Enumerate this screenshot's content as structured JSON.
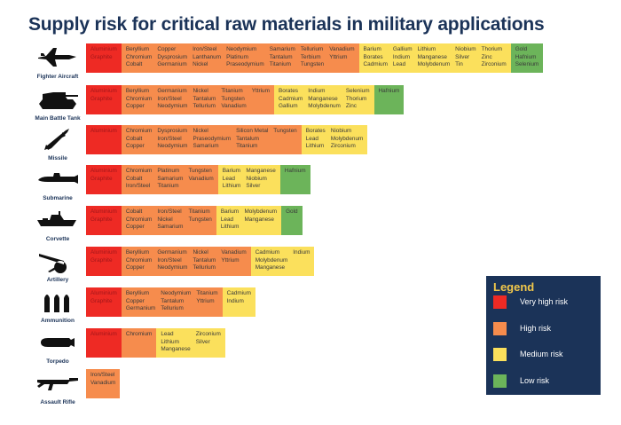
{
  "title": "Supply risk for critical raw materials in military applications",
  "legend": {
    "title": "Legend",
    "items": [
      {
        "label": "Very high risk",
        "color": "#ee2a24"
      },
      {
        "label": "High risk",
        "color": "#f68c4d"
      },
      {
        "label": "Medium risk",
        "color": "#fbe05c"
      },
      {
        "label": "Low risk",
        "color": "#6cb45a"
      }
    ]
  },
  "rows": [
    {
      "label": "Fighter Aircraft",
      "groups": [
        {
          "color": "#ee2a24",
          "columns": [
            [
              "Aluminium",
              "Graphite"
            ]
          ]
        },
        {
          "color": "#f68c4d",
          "columns": [
            [
              "Beryllium",
              "Chromium",
              "Cobalt"
            ],
            [
              "Copper",
              "Dysprosium",
              "Germanium"
            ],
            [
              "Iron/Steel",
              "Lanthanum",
              "Nickel"
            ],
            [
              "Neodymium",
              "Platinum",
              "Praseodymium"
            ],
            [
              "Samarium",
              "Tantalum",
              "Titanium"
            ],
            [
              "Tellurium",
              "Terbium",
              "Tungsten"
            ],
            [
              "Vanadium",
              "Yttrium"
            ]
          ]
        },
        {
          "color": "#fbe05c",
          "columns": [
            [
              "Barium",
              "Borates",
              "Cadmium"
            ],
            [
              "Gallium",
              "Indium",
              "Lead"
            ],
            [
              "Lithium",
              "Manganese",
              "Molybdenum"
            ],
            [
              "Niobium",
              "Silver",
              "Tin"
            ],
            [
              "Thorium",
              "Zinc",
              "Zirconium"
            ]
          ]
        },
        {
          "color": "#6cb45a",
          "columns": [
            [
              "Gold",
              "Hafnium",
              "Selenium"
            ]
          ]
        }
      ]
    },
    {
      "label": "Main Battle Tank",
      "groups": [
        {
          "color": "#ee2a24",
          "columns": [
            [
              "Aluminium",
              "Graphite"
            ]
          ]
        },
        {
          "color": "#f68c4d",
          "columns": [
            [
              "Beryllium",
              "Chromium",
              "Copper"
            ],
            [
              "Germanium",
              "Iron/Steel",
              "Neodymium"
            ],
            [
              "Nickel",
              "Tantalum",
              "Tellurium"
            ],
            [
              "Titanium",
              "Tungsten",
              "Vanadium"
            ],
            [
              "Yttrium"
            ]
          ]
        },
        {
          "color": "#fbe05c",
          "columns": [
            [
              "Borates",
              "Cadmium",
              "Gallium"
            ],
            [
              "Indium",
              "Manganese",
              "Molybdenum"
            ],
            [
              "Selenium",
              "Thorium",
              "Zinc"
            ]
          ]
        },
        {
          "color": "#6cb45a",
          "columns": [
            [
              "Hafnium"
            ]
          ]
        }
      ]
    },
    {
      "label": "Missile",
      "groups": [
        {
          "color": "#ee2a24",
          "columns": [
            [
              "Aluminium"
            ]
          ]
        },
        {
          "color": "#f68c4d",
          "columns": [
            [
              "Chromium",
              "Cobalt",
              "Copper"
            ],
            [
              "Dysprosium",
              "Iron/Steel",
              "Neodymium"
            ],
            [
              "Nickel",
              "Praseodymium",
              "Samarium"
            ],
            [
              "Silicon Metal",
              "Tantalum",
              "Titanium"
            ],
            [
              "Tungsten"
            ]
          ]
        },
        {
          "color": "#fbe05c",
          "columns": [
            [
              "Borates",
              "Lead",
              "Lithium"
            ],
            [
              "Niobium",
              "Molybdenum",
              "Zirconium"
            ]
          ]
        }
      ]
    },
    {
      "label": "Submarine",
      "groups": [
        {
          "color": "#ee2a24",
          "columns": [
            [
              "Aluminium",
              "Graphite"
            ]
          ]
        },
        {
          "color": "#f68c4d",
          "columns": [
            [
              "Chromium",
              "Cobalt",
              "Iron/Steel"
            ],
            [
              "Platinum",
              "Samarium",
              "Titanium"
            ],
            [
              "Tungsten",
              "Vanadium"
            ]
          ]
        },
        {
          "color": "#fbe05c",
          "columns": [
            [
              "Barium",
              "Lead",
              "Lithium"
            ],
            [
              "Manganese",
              "Niobium",
              "Silver"
            ]
          ]
        },
        {
          "color": "#6cb45a",
          "columns": [
            [
              "Hafnium"
            ]
          ]
        }
      ]
    },
    {
      "label": "Corvette",
      "groups": [
        {
          "color": "#ee2a24",
          "columns": [
            [
              "Aluminium",
              "Graphite"
            ]
          ]
        },
        {
          "color": "#f68c4d",
          "columns": [
            [
              "Cobalt",
              "Chromium",
              "Copper"
            ],
            [
              "Iron/Steel",
              "Nickel",
              "Samarium"
            ],
            [
              "Titanium",
              "Tungsten"
            ]
          ]
        },
        {
          "color": "#fbe05c",
          "columns": [
            [
              "Barium",
              "Lead",
              "Lithium"
            ],
            [
              "Molybdenum",
              "Manganese"
            ]
          ]
        },
        {
          "color": "#6cb45a",
          "columns": [
            [
              "Gold"
            ]
          ]
        }
      ]
    },
    {
      "label": "Artillery",
      "groups": [
        {
          "color": "#ee2a24",
          "columns": [
            [
              "Aluminium",
              "Graphite"
            ]
          ]
        },
        {
          "color": "#f68c4d",
          "columns": [
            [
              "Beryllium",
              "Chromium",
              "Copper"
            ],
            [
              "Germanium",
              "Iron/Steel",
              "Neodymium"
            ],
            [
              "Nickel",
              "Tantalum",
              "Tellurium"
            ],
            [
              "Vanadium",
              "Yttrium"
            ]
          ]
        },
        {
          "color": "#fbe05c",
          "columns": [
            [
              "Cadmium",
              "Molybdenum",
              "Manganese"
            ],
            [
              "Indium"
            ]
          ]
        }
      ]
    },
    {
      "label": "Ammunition",
      "groups": [
        {
          "color": "#ee2a24",
          "columns": [
            [
              "Aluminium",
              "Graphite"
            ]
          ]
        },
        {
          "color": "#f68c4d",
          "columns": [
            [
              "Beryllium",
              "Copper",
              "Germanium"
            ],
            [
              "Neodymium",
              "Tantalum",
              "Tellurium"
            ],
            [
              "Titanium",
              "Yttrium"
            ]
          ]
        },
        {
          "color": "#fbe05c",
          "columns": [
            [
              "Cadmium",
              "Indium"
            ]
          ]
        }
      ]
    },
    {
      "label": "Torpedo",
      "groups": [
        {
          "color": "#ee2a24",
          "columns": [
            [
              "Aluminium"
            ]
          ]
        },
        {
          "color": "#f68c4d",
          "columns": [
            [
              "Chromium"
            ]
          ]
        },
        {
          "color": "#fbe05c",
          "columns": [
            [
              "Lead",
              "Lithium",
              "Manganese"
            ],
            [
              "Zirconium",
              "Silver"
            ]
          ]
        }
      ]
    },
    {
      "label": "Assault Rifle",
      "groups": [
        {
          "color": "#f68c4d",
          "columns": [
            [
              "Iron/Steel",
              "Vanadium"
            ]
          ]
        }
      ]
    }
  ]
}
